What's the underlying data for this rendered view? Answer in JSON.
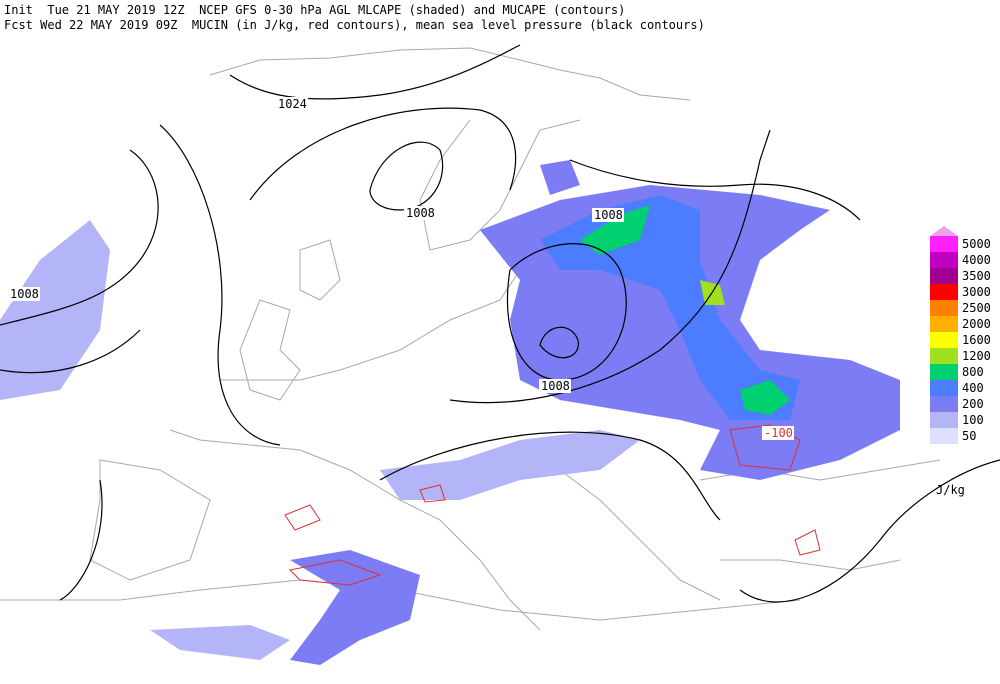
{
  "header": {
    "line1": "Init  Tue 21 MAY 2019 12Z  NCEP GFS 0-30 hPa AGL MLCAPE (shaded) and MUCAPE (contours)",
    "line2": "Fcst Wed 22 MAY 2019 09Z  MUCIN (in J/kg, red contours), mean sea level pressure (black contours)"
  },
  "map_labels": [
    "1024",
    "1008",
    "1008",
    "1008",
    "1008",
    "-100"
  ],
  "legend": {
    "unit": "J/kg",
    "top_color": "#f0a0f0",
    "items": [
      {
        "label": "5000",
        "color": "#ff20ff"
      },
      {
        "label": "4000",
        "color": "#c000c0"
      },
      {
        "label": "3500",
        "color": "#a00090"
      },
      {
        "label": "3000",
        "color": "#ff0000"
      },
      {
        "label": "2500",
        "color": "#ff8000"
      },
      {
        "label": "2000",
        "color": "#ffb000"
      },
      {
        "label": "1600",
        "color": "#ffff00"
      },
      {
        "label": "1200",
        "color": "#a0e020"
      },
      {
        "label": "800",
        "color": "#00d070"
      },
      {
        "label": "400",
        "color": "#4c7cff"
      },
      {
        "label": "200",
        "color": "#7c7cf4"
      },
      {
        "label": "100",
        "color": "#b4b4f8"
      },
      {
        "label": "50",
        "color": "#e0e0fc"
      }
    ]
  }
}
